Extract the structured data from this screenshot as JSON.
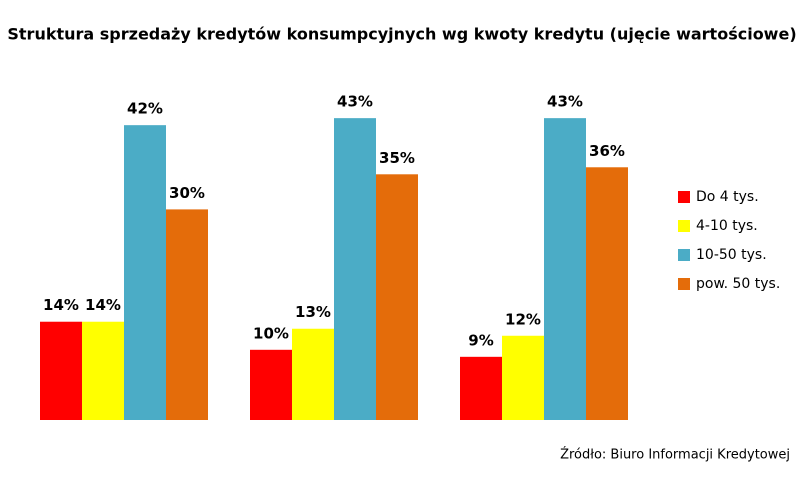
{
  "chart_data": {
    "type": "bar",
    "title": "Struktura sprzedaży kredytów konsumpcyjnych wg kwoty kredytu (ujęcie wartościowe)",
    "categories": [
      null,
      null,
      null
    ],
    "series": [
      {
        "name": "Do 4 tys.",
        "color": "#ff0000",
        "values": [
          14,
          10,
          9
        ],
        "value_labels": [
          "14%",
          "10%",
          "9%"
        ]
      },
      {
        "name": "4-10 tys.",
        "color": "#ffff00",
        "values": [
          14,
          13,
          12
        ],
        "value_labels": [
          "14%",
          "13%",
          "12%"
        ]
      },
      {
        "name": "10-50 tys.",
        "color": "#4bacc6",
        "values": [
          42,
          43,
          43
        ],
        "value_labels": [
          "42%",
          "43%",
          "43%"
        ]
      },
      {
        "name": "pow. 50 tys.",
        "color": "#e46c0a",
        "values": [
          30,
          35,
          36
        ],
        "value_labels": [
          "30%",
          "35%",
          "36%"
        ]
      }
    ],
    "legend": "right",
    "source": "Źródło: Biuro Informacji Kredytowej"
  }
}
